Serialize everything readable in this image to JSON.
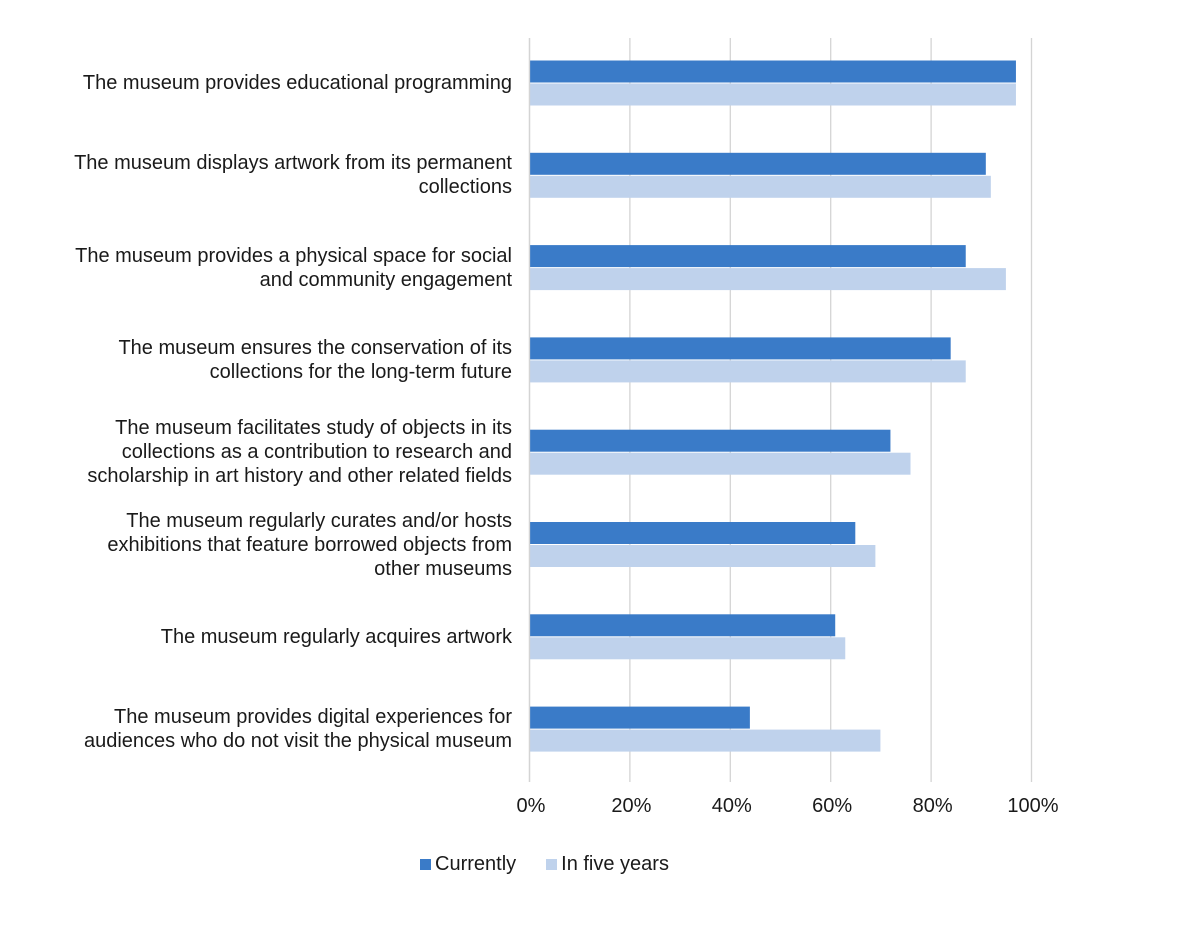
{
  "chart_data": {
    "type": "bar",
    "orientation": "horizontal",
    "categories": [
      [
        "The museum provides educational programming"
      ],
      [
        "The museum displays artwork from its permanent",
        "collections"
      ],
      [
        "The museum provides a physical space for social",
        "and community engagement"
      ],
      [
        "The museum ensures the conservation of  its",
        "collections for the long-term future"
      ],
      [
        "The museum facilitates study of objects in its",
        "collections as a contribution to research and",
        "scholarship in art history and other related fields"
      ],
      [
        "The museum regularly curates and/or hosts",
        "exhibitions that feature borrowed objects from",
        "other museums"
      ],
      [
        "The museum regularly acquires artwork"
      ],
      [
        "The museum provides digital experiences for",
        "audiences who do not visit the physical museum"
      ]
    ],
    "series": [
      {
        "name": "Currently",
        "color": "#3a7bc8",
        "values": [
          97,
          91,
          87,
          84,
          72,
          65,
          61,
          44
        ]
      },
      {
        "name": "In five years",
        "color": "#bfd2ec",
        "values": [
          97,
          92,
          95,
          87,
          76,
          69,
          63,
          70
        ]
      }
    ],
    "xlim": [
      0,
      100
    ],
    "xticks": [
      0,
      20,
      40,
      60,
      80,
      100
    ],
    "xtick_labels": [
      "0%",
      "20%",
      "40%",
      "60%",
      "80%",
      "100%"
    ],
    "grid": "vertical",
    "gridline_color": "#d4d4d4",
    "legend_position": "bottom",
    "title": "",
    "xlabel": "",
    "ylabel": ""
  }
}
